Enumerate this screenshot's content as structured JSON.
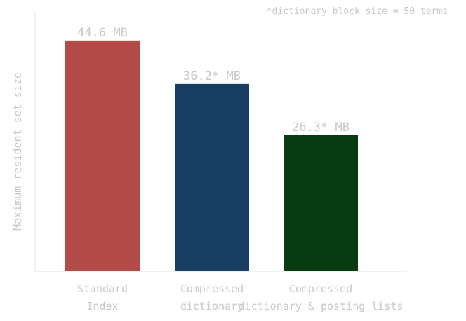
{
  "chart_data": {
    "type": "bar",
    "title": "",
    "xlabel": "",
    "ylabel": "Maximum resident set size",
    "unit": "MB",
    "categories": [
      [
        "Standard",
        "Index"
      ],
      [
        "Compressed",
        "dictionary"
      ],
      [
        "Compressed",
        "dictionary & posting lists"
      ]
    ],
    "values": [
      44.6,
      36.2,
      26.3
    ],
    "value_labels": [
      "44.6 MB",
      "36.2* MB",
      "26.3* MB"
    ],
    "colors": [
      "#b34b48",
      "#183f62",
      "#093b11"
    ],
    "ylim": [
      0,
      50
    ],
    "grid": false,
    "legend": "none",
    "annotation": "*dictionary block size = 50 terms"
  }
}
